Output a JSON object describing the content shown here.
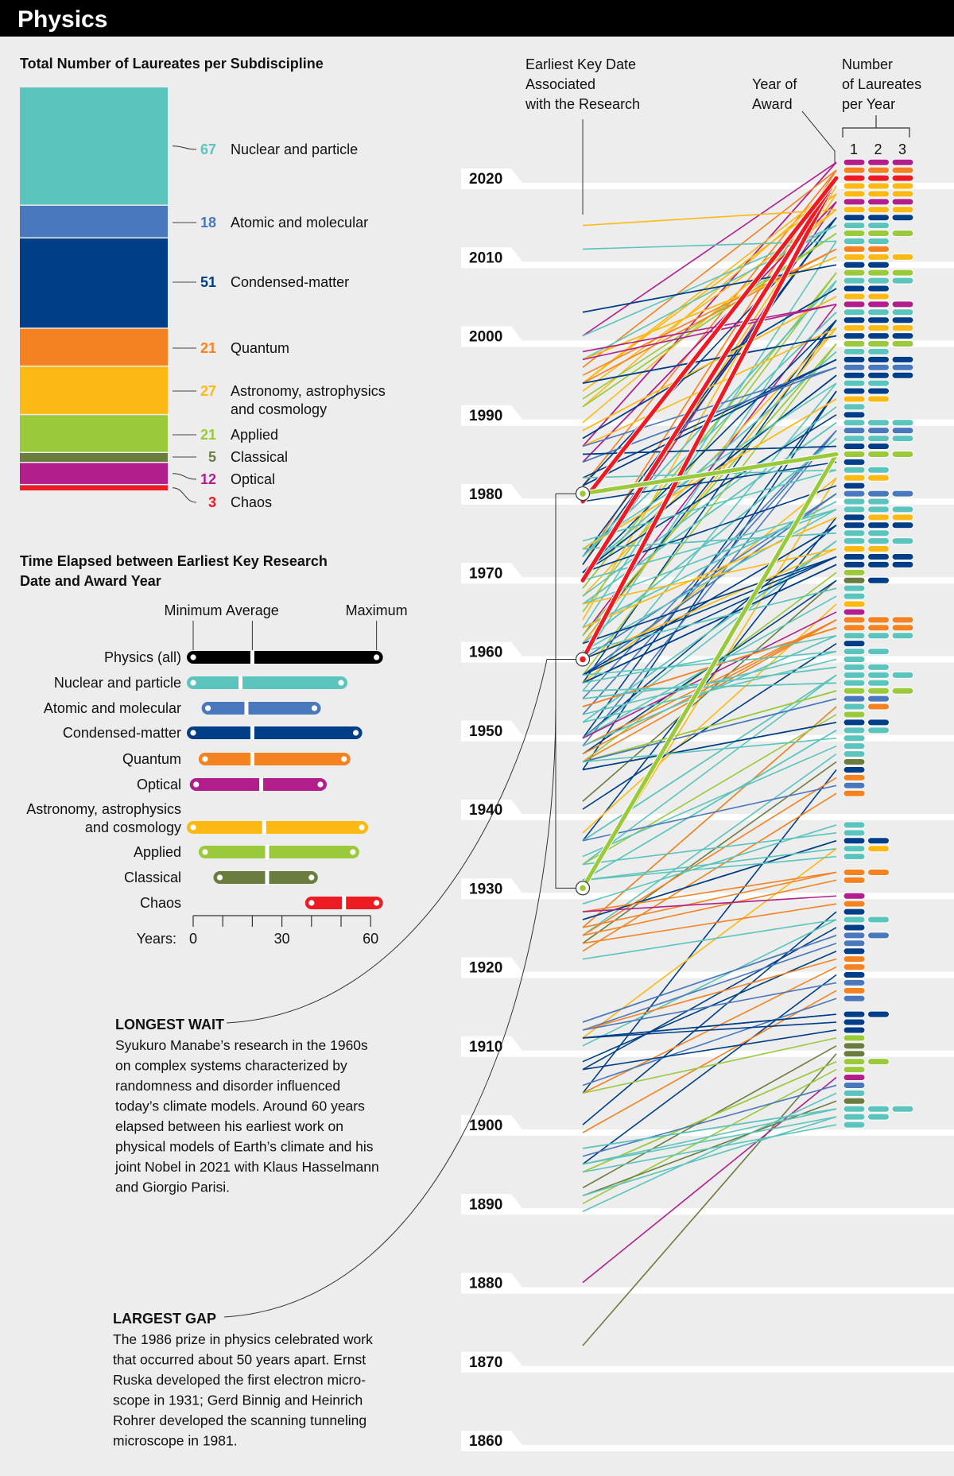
{
  "header": {
    "title": "Physics"
  },
  "categories": {
    "N": {
      "name": "Nuclear and particle",
      "color": "#5bc4bc"
    },
    "A": {
      "name": "Atomic and molecular",
      "color": "#4a78bd"
    },
    "C": {
      "name": "Condensed-matter",
      "color": "#003f87"
    },
    "Q": {
      "name": "Quantum",
      "color": "#f58220"
    },
    "Y": {
      "name": "Astronomy, astrophysics and cosmology",
      "color": "#fdb913"
    },
    "P": {
      "name": "Applied",
      "color": "#9aca3c"
    },
    "L": {
      "name": "Classical",
      "color": "#6b7d3e"
    },
    "O": {
      "name": "Optical",
      "color": "#b21e8c"
    },
    "X": {
      "name": "Chaos",
      "color": "#ed1c24"
    }
  },
  "totals": {
    "title": "Total Number of Laureates per Subdiscipline",
    "items": [
      {
        "key": "N",
        "count": "67",
        "lines": [
          "Nuclear and particle"
        ]
      },
      {
        "key": "A",
        "count": "18",
        "lines": [
          "Atomic and molecular"
        ]
      },
      {
        "key": "C",
        "count": "51",
        "lines": [
          "Condensed-matter"
        ]
      },
      {
        "key": "Q",
        "count": "21",
        "lines": [
          "Quantum"
        ]
      },
      {
        "key": "Y",
        "count": "27",
        "lines": [
          "Astronomy, astrophysics",
          "and cosmology"
        ]
      },
      {
        "key": "P",
        "count": "21",
        "lines": [
          "Applied"
        ]
      },
      {
        "key": "L",
        "count": "5",
        "lines": [
          "Classical"
        ]
      },
      {
        "key": "O",
        "count": "12",
        "lines": [
          "Optical"
        ]
      },
      {
        "key": "X",
        "count": "3",
        "lines": [
          "Chaos"
        ]
      }
    ]
  },
  "elapsed": {
    "title_lines": [
      "Time Elapsed between Earliest Key Research",
      "Date and Award Year"
    ],
    "legend": {
      "min": "Minimum",
      "avg": "Average",
      "max": "Maximum"
    },
    "axis_label": "Years:",
    "ticks": [
      "0",
      "30",
      "60"
    ],
    "rows": [
      {
        "lines": [
          "Physics (all)"
        ],
        "color": "#000000",
        "min": 0,
        "avg": 20,
        "max": 62
      },
      {
        "lines": [
          "Nuclear and particle"
        ],
        "color": "#5bc4bc",
        "min": 0,
        "avg": 16,
        "max": 50
      },
      {
        "lines": [
          "Atomic and molecular"
        ],
        "color": "#4a78bd",
        "min": 5,
        "avg": 18,
        "max": 41
      },
      {
        "lines": [
          "Condensed-matter"
        ],
        "color": "#003f87",
        "min": 0,
        "avg": 20,
        "max": 55
      },
      {
        "lines": [
          "Quantum"
        ],
        "color": "#f58220",
        "min": 4,
        "avg": 20,
        "max": 51
      },
      {
        "lines": [
          "Optical"
        ],
        "color": "#b21e8c",
        "min": 1,
        "avg": 23,
        "max": 43
      },
      {
        "lines": [
          "Astronomy, astrophysics",
          "and cosmology"
        ],
        "color": "#fdb913",
        "min": 0,
        "avg": 24,
        "max": 57
      },
      {
        "lines": [
          "Applied"
        ],
        "color": "#9aca3c",
        "min": 4,
        "avg": 25,
        "max": 54
      },
      {
        "lines": [
          "Classical"
        ],
        "color": "#6b7d3e",
        "min": 9,
        "avg": 25,
        "max": 40
      },
      {
        "lines": [
          "Chaos"
        ],
        "color": "#ed1c24",
        "min": 40,
        "avg": 51,
        "max": 62
      }
    ]
  },
  "chart_data": {
    "type": "slope",
    "column_labels": {
      "research": [
        "Earliest Key Date",
        "Associated",
        "with the Research"
      ],
      "award": [
        "Year of",
        "Award"
      ],
      "count": [
        "Number",
        "of Laureates",
        "per Year"
      ],
      "count_ticks": [
        "1",
        "2",
        "3"
      ]
    },
    "year_ticks": [
      "2020",
      "2010",
      "2000",
      "1990",
      "1980",
      "1970",
      "1960",
      "1950",
      "1940",
      "1930",
      "1920",
      "1910",
      "1900",
      "1890",
      "1880",
      "1870",
      "1860"
    ],
    "ylim": [
      1860,
      2023
    ],
    "highlighted_awards": [
      2021,
      1986
    ],
    "awards": [
      [
        2023,
        "OOO",
        [
          1987,
          2001,
          1987
        ]
      ],
      [
        2022,
        "QQQ",
        [
          1982,
          1972,
          1997
        ]
      ],
      [
        2021,
        "XXX",
        [
          1960,
          1970,
          1980
        ]
      ],
      [
        2020,
        "YYY",
        [
          1965,
          1992,
          1995
        ]
      ],
      [
        2019,
        "YYY",
        [
          1970,
          1995,
          1995
        ]
      ],
      [
        2018,
        "OOO",
        [
          1970,
          1985,
          1985
        ]
      ],
      [
        2017,
        "YYY",
        [
          1990,
          2015,
          1994
        ]
      ],
      [
        2016,
        "CCC",
        [
          1972,
          1973,
          1982
        ]
      ],
      [
        2015,
        "NN",
        [
          1998,
          2001
        ]
      ],
      [
        2014,
        "PPP",
        [
          1992,
          1992,
          1993
        ]
      ],
      [
        2013,
        "NN",
        [
          1964,
          2012
        ]
      ],
      [
        2012,
        "QQ",
        [
          1996,
          1995
        ]
      ],
      [
        2011,
        "YYY",
        [
          1998,
          1998,
          1998
        ]
      ],
      [
        2010,
        "CC",
        [
          2004,
          2004
        ]
      ],
      [
        2009,
        "PPP",
        [
          1966,
          1969,
          1969
        ]
      ],
      [
        2008,
        "NNN",
        [
          1960,
          1973,
          1973
        ]
      ],
      [
        2007,
        "CC",
        [
          1988,
          1988
        ]
      ],
      [
        2006,
        "YY",
        [
          1989,
          1989
        ]
      ],
      [
        2005,
        "OOO",
        [
          1963,
          1998,
          1999
        ]
      ],
      [
        2004,
        "NNN",
        [
          1973,
          1973,
          1973
        ]
      ],
      [
        2003,
        "CCC",
        [
          1957,
          1962,
          1971
        ]
      ],
      [
        2002,
        "YYY",
        [
          1968,
          1987,
          1962
        ]
      ],
      [
        2001,
        "CCC",
        [
          1995,
          1995,
          1995
        ]
      ],
      [
        2000,
        "PPP",
        [
          1963,
          1958,
          1963
        ]
      ],
      [
        1999,
        "NN",
        [
          1971,
          1971
        ]
      ],
      [
        1998,
        "CCC",
        [
          1982,
          1982,
          1983
        ]
      ],
      [
        1997,
        "AAA",
        [
          1985,
          1985,
          1987
        ]
      ],
      [
        1996,
        "CCC",
        [
          1971,
          1971,
          1971
        ]
      ],
      [
        1995,
        "NN",
        [
          1956,
          1974
        ]
      ],
      [
        1994,
        "CC",
        [
          1950,
          1946
        ]
      ],
      [
        1993,
        "YY",
        [
          1974,
          1974
        ]
      ],
      [
        1992,
        "N",
        [
          1968
        ]
      ],
      [
        1991,
        "C",
        [
          1971
        ]
      ],
      [
        1990,
        "NNN",
        [
          1967,
          1967,
          1967
        ]
      ],
      [
        1989,
        "AAA",
        [
          1949,
          1955,
          1953
        ]
      ],
      [
        1988,
        "NNN",
        [
          1962,
          1962,
          1962
        ]
      ],
      [
        1987,
        "CC",
        [
          1986,
          1986
        ]
      ],
      [
        1986,
        "PPP",
        [
          1931,
          1981,
          1981
        ]
      ],
      [
        1985,
        "C",
        [
          1980
        ]
      ],
      [
        1984,
        "NN",
        [
          1983,
          1975
        ]
      ],
      [
        1983,
        "YY",
        [
          1931,
          1957
        ]
      ],
      [
        1982,
        "C",
        [
          1971
        ]
      ],
      [
        1981,
        "AAA",
        [
          1958,
          1958,
          1960
        ]
      ],
      [
        1980,
        "NN",
        [
          1964,
          1964
        ]
      ],
      [
        1979,
        "NNN",
        [
          1961,
          1967,
          1970
        ]
      ],
      [
        1978,
        "CYY",
        [
          1937,
          1964,
          1964
        ]
      ],
      [
        1977,
        "CCC",
        [
          1950,
          1958,
          1958
        ]
      ],
      [
        1976,
        "NN",
        [
          1974,
          1974
        ]
      ],
      [
        1975,
        "NNN",
        [
          1950,
          1952,
          1952
        ]
      ],
      [
        1974,
        "YY",
        [
          1960,
          1967
        ]
      ],
      [
        1973,
        "CCC",
        [
          1958,
          1960,
          1962
        ]
      ],
      [
        1972,
        "CCC",
        [
          1957,
          1957,
          1957
        ]
      ],
      [
        1971,
        "P",
        [
          1947
        ]
      ],
      [
        1970,
        "LC",
        [
          1942,
          1948
        ]
      ],
      [
        1969,
        "N",
        [
          1961
        ]
      ],
      [
        1968,
        "N",
        [
          1950
        ]
      ],
      [
        1967,
        "Y",
        [
          1938
        ]
      ],
      [
        1966,
        "O",
        [
          1950
        ]
      ],
      [
        1965,
        "QQQ",
        [
          1948,
          1947,
          1949
        ]
      ],
      [
        1964,
        "QQQ",
        [
          1954,
          1954,
          1954
        ]
      ],
      [
        1963,
        "NNN",
        [
          1957,
          1949,
          1949
        ]
      ],
      [
        1962,
        "C",
        [
          1941
        ]
      ],
      [
        1961,
        "NN",
        [
          1953,
          1958
        ]
      ],
      [
        1960,
        "N",
        [
          1952
        ]
      ],
      [
        1959,
        "NN",
        [
          1955,
          1955
        ]
      ],
      [
        1958,
        "NNN",
        [
          1934,
          1937,
          1937
        ]
      ],
      [
        1957,
        "NN",
        [
          1956,
          1956
        ]
      ],
      [
        1956,
        "PPP",
        [
          1947,
          1947,
          1947
        ]
      ],
      [
        1955,
        "AA",
        [
          1947,
          1947
        ]
      ],
      [
        1954,
        "NQ",
        [
          1926,
          1926
        ]
      ],
      [
        1953,
        "P",
        [
          1934
        ]
      ],
      [
        1952,
        "CC",
        [
          1946,
          1946
        ]
      ],
      [
        1951,
        "NN",
        [
          1932,
          1932
        ]
      ],
      [
        1950,
        "N",
        [
          1947
        ]
      ],
      [
        1949,
        "N",
        [
          1935
        ]
      ],
      [
        1948,
        "N",
        [
          1925
        ]
      ],
      [
        1947,
        "L",
        [
          1924
        ]
      ],
      [
        1946,
        "C",
        [
          1905
        ]
      ],
      [
        1945,
        "Q",
        [
          1925
        ]
      ],
      [
        1944,
        "A",
        [
          1937
        ]
      ],
      [
        1943,
        "Q",
        [
          1923
        ]
      ],
      [
        1939,
        "N",
        [
          1929
        ]
      ],
      [
        1938,
        "N",
        [
          1934
        ]
      ],
      [
        1937,
        "CC",
        [
          1927,
          1927
        ]
      ],
      [
        1936,
        "NY",
        [
          1932,
          1912
        ]
      ],
      [
        1935,
        "N",
        [
          1932
        ]
      ],
      [
        1933,
        "QQ",
        [
          1926,
          1928
        ]
      ],
      [
        1932,
        "Q",
        [
          1925
        ]
      ],
      [
        1930,
        "O",
        [
          1928
        ]
      ],
      [
        1929,
        "Q",
        [
          1924
        ]
      ],
      [
        1928,
        "C",
        [
          1901
        ]
      ],
      [
        1927,
        "NN",
        [
          1911,
          1922
        ]
      ],
      [
        1926,
        "C",
        [
          1908
        ]
      ],
      [
        1925,
        "AA",
        [
          1914,
          1914
        ]
      ],
      [
        1924,
        "A",
        [
          1913
        ]
      ],
      [
        1923,
        "C",
        [
          1909
        ]
      ],
      [
        1922,
        "Q",
        [
          1913
        ]
      ],
      [
        1921,
        "Q",
        [
          1905
        ]
      ],
      [
        1920,
        "C",
        [
          1896
        ]
      ],
      [
        1919,
        "A",
        [
          1913
        ]
      ],
      [
        1918,
        "Q",
        [
          1900
        ]
      ],
      [
        1917,
        "A",
        [
          1906
        ]
      ],
      [
        1915,
        "CC",
        [
          1912,
          1912
        ]
      ],
      [
        1914,
        "C",
        [
          1912
        ]
      ],
      [
        1913,
        "C",
        [
          1908
        ]
      ],
      [
        1912,
        "P",
        [
          1905
        ]
      ],
      [
        1911,
        "L",
        [
          1893
        ]
      ],
      [
        1910,
        "L",
        [
          1873
        ]
      ],
      [
        1909,
        "PP",
        [
          1895,
          1895
        ]
      ],
      [
        1908,
        "P",
        [
          1891
        ]
      ],
      [
        1907,
        "O",
        [
          1881
        ]
      ],
      [
        1906,
        "A",
        [
          1897
        ]
      ],
      [
        1905,
        "N",
        [
          1890
        ]
      ],
      [
        1904,
        "L",
        [
          1892
        ]
      ],
      [
        1903,
        "NNN",
        [
          1896,
          1898,
          1898
        ]
      ],
      [
        1902,
        "NN",
        [
          1896,
          1892
        ]
      ],
      [
        1901,
        "N",
        [
          1895
        ]
      ]
    ],
    "markers": [
      {
        "year": 1981,
        "key": "P"
      },
      {
        "year": 1960,
        "key": "X"
      },
      {
        "year": 1931,
        "key": "P"
      }
    ]
  },
  "annotations": {
    "longest": {
      "title": "LONGEST WAIT",
      "lines": [
        "Syukuro Manabe’s research in the 1960s",
        "on complex systems characterized by",
        "randomness and disorder influenced",
        "today’s climate models. Around 60 years",
        "elapsed between his earliest work on",
        "physical models of Earth’s climate and his",
        "joint Nobel in 2021 with Klaus Hasselmann",
        "and Giorgio Parisi."
      ]
    },
    "largest": {
      "title": "LARGEST GAP",
      "lines": [
        "The 1986 prize in physics celebrated work",
        "that occurred about 50 years apart. Ernst",
        "Ruska developed the first electron micro-",
        "scope in 1931; Gerd Binnig and Heinrich",
        "Rohrer developed the scanning tunneling",
        "microscope in 1981."
      ]
    }
  }
}
